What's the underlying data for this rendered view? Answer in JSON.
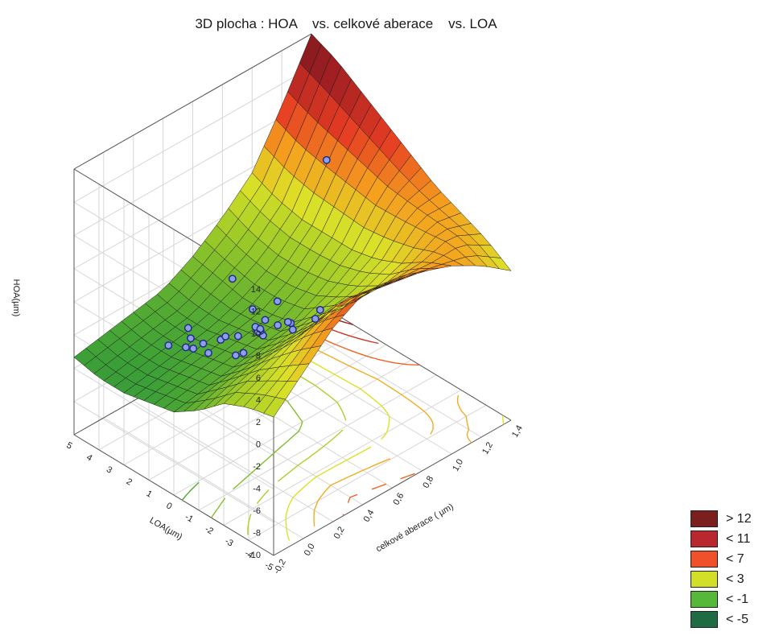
{
  "chart_data": {
    "type": "surface3d",
    "title": "3D plocha : HOA    vs. celkové aberace    vs. LOA",
    "zlabel": "HOA(µm)",
    "ylabel": "LOA(µm)",
    "xlabel": "celkové aberace ( µm)",
    "x_ticks": [
      "-0,2",
      "0,0",
      "0,2",
      "0,4",
      "0,6",
      "0,8",
      "1,0",
      "1,2",
      "1,4"
    ],
    "y_ticks": [
      "5",
      "4",
      "3",
      "2",
      "1",
      "0",
      "-1",
      "-2",
      "-3",
      "-4",
      "-5"
    ],
    "z_ticks": [
      "14",
      "12",
      "10",
      "8",
      "6",
      "4",
      "2",
      "0",
      "-2",
      "-4",
      "-6",
      "-8",
      "-10"
    ],
    "xlim": [
      -0.2,
      1.4
    ],
    "ylim": [
      -5,
      5
    ],
    "zlim": [
      -10,
      14
    ],
    "surface_z": [
      [
        2.5,
        5.0,
        7.5,
        9.0,
        8.5,
        8.0,
        7.0,
        5.5,
        3.5
      ],
      [
        2.0,
        3.5,
        5.5,
        7.0,
        6.5,
        6.0,
        6.0,
        6.5,
        5.0
      ],
      [
        1.0,
        2.0,
        3.0,
        3.5,
        3.5,
        3.5,
        4.5,
        6.5,
        6.0
      ],
      [
        -1.0,
        0.0,
        0.5,
        1.0,
        1.5,
        2.0,
        3.5,
        6.5,
        7.0
      ],
      [
        -2.5,
        -2.0,
        -1.5,
        -1.0,
        -0.5,
        1.0,
        3.0,
        6.5,
        8.5
      ],
      [
        -3.0,
        -2.5,
        -2.0,
        -1.5,
        -1.0,
        0.5,
        3.0,
        7.0,
        10.0
      ],
      [
        -3.5,
        -3.0,
        -2.5,
        -2.0,
        -1.0,
        0.5,
        3.0,
        7.5,
        11.5
      ],
      [
        -3.5,
        -3.0,
        -2.5,
        -2.0,
        -0.5,
        1.0,
        3.5,
        8.0,
        13.0
      ],
      [
        -3.0,
        -2.5,
        -2.0,
        -1.5,
        0.0,
        2.0,
        4.5,
        9.0,
        14.0
      ]
    ],
    "observations": [
      {
        "x": 0.05,
        "y": 4.0,
        "z": 8.0
      },
      {
        "x": 0.3,
        "y": 2.0,
        "z": 4.0
      },
      {
        "x": 0.2,
        "y": 1.5,
        "z": 3.0
      },
      {
        "x": 0.25,
        "y": 1.0,
        "z": 2.5
      },
      {
        "x": 0.3,
        "y": 0.5,
        "z": 1.5
      },
      {
        "x": 0.35,
        "y": 0.0,
        "z": 1.0
      },
      {
        "x": 0.3,
        "y": -0.5,
        "z": 0.0
      },
      {
        "x": 0.25,
        "y": -1.0,
        "z": -0.5
      },
      {
        "x": 0.2,
        "y": -1.5,
        "z": -1.0
      },
      {
        "x": 0.15,
        "y": -2.0,
        "z": -1.5
      },
      {
        "x": 0.1,
        "y": -2.5,
        "z": -1.5
      },
      {
        "x": 0.2,
        "y": -2.0,
        "z": -2.0
      },
      {
        "x": 0.25,
        "y": -2.5,
        "z": -2.0
      },
      {
        "x": 0.35,
        "y": -1.5,
        "z": -1.5
      },
      {
        "x": 0.45,
        "y": -0.5,
        "z": -0.5
      },
      {
        "x": 0.5,
        "y": 0.0,
        "z": 0.0
      },
      {
        "x": 0.55,
        "y": -1.0,
        "z": -1.0
      },
      {
        "x": 0.4,
        "y": 1.5,
        "z": 2.0
      },
      {
        "x": 0.45,
        "y": 2.5,
        "z": 4.5
      },
      {
        "x": 0.35,
        "y": 3.0,
        "z": 5.0
      },
      {
        "x": 0.15,
        "y": 0.5,
        "z": 0.5
      },
      {
        "x": 0.1,
        "y": -0.5,
        "z": 0.0
      },
      {
        "x": 0.3,
        "y": -3.0,
        "z": -2.0
      },
      {
        "x": 0.6,
        "y": -2.0,
        "z": -1.5
      },
      {
        "x": 0.7,
        "y": -1.5,
        "z": -1.0
      },
      {
        "x": 0.0,
        "y": 2.0,
        "z": 3.5
      },
      {
        "x": 1.3,
        "y": -3.5,
        "z": 5.0
      },
      {
        "x": 0.8,
        "y": -4.5,
        "z": -3.0
      }
    ],
    "legend": [
      {
        "label": "> 12",
        "color": "#7a1e1e"
      },
      {
        "label": "< 11",
        "color": "#b9282e"
      },
      {
        "label": "< 7",
        "color": "#f0502a"
      },
      {
        "label": "< 3",
        "color": "#d2df26"
      },
      {
        "label": "< -1",
        "color": "#55b83a"
      },
      {
        "label": "< -5",
        "color": "#1e6b44"
      }
    ],
    "legend_position": "bottom-right"
  }
}
